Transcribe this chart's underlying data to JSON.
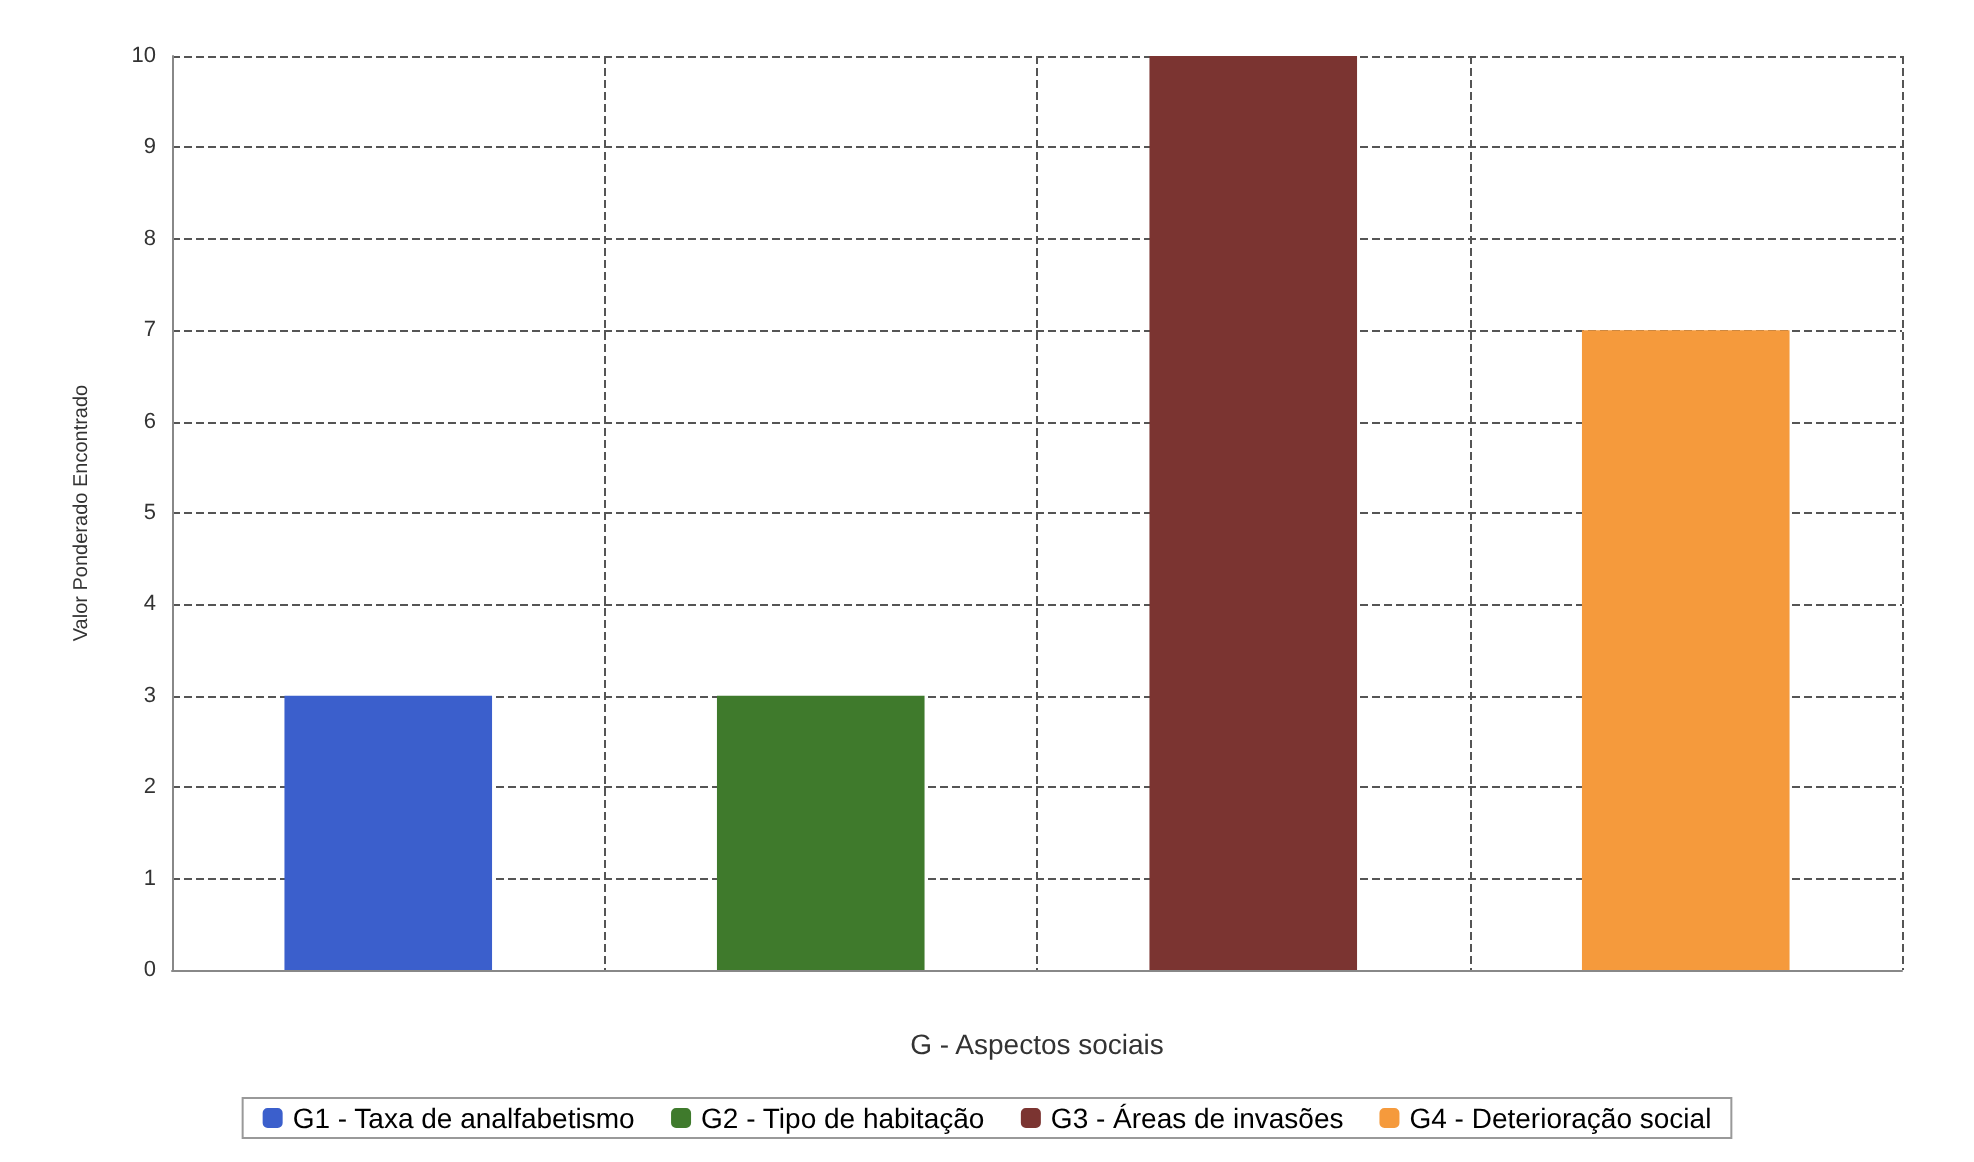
{
  "chart_data": {
    "type": "bar",
    "xlabel": "G - Aspectos sociais",
    "ylabel": "Valor Ponderado Encontrado",
    "categories": [
      null,
      null,
      null,
      null
    ],
    "series": [
      {
        "name": "G1 - Taxa de analfabetismo",
        "color": "#3b5fcc",
        "values": [
          3,
          null,
          null,
          null
        ]
      },
      {
        "name": "G2 - Tipo de habitação",
        "color": "#3f7a2c",
        "values": [
          null,
          3,
          null,
          null
        ]
      },
      {
        "name": "G3 - Áreas de invasões",
        "color": "#7b3431",
        "values": [
          null,
          null,
          10,
          null
        ]
      },
      {
        "name": "G4 - Deterioração social",
        "color": "#f59a3c",
        "values": [
          null,
          null,
          null,
          7
        ]
      }
    ],
    "stacked": true,
    "ylim": [
      0,
      10
    ],
    "yticks": [
      0,
      1,
      2,
      3,
      4,
      5,
      6,
      7,
      8,
      9,
      10
    ],
    "grid": true,
    "legend": "bottom"
  }
}
